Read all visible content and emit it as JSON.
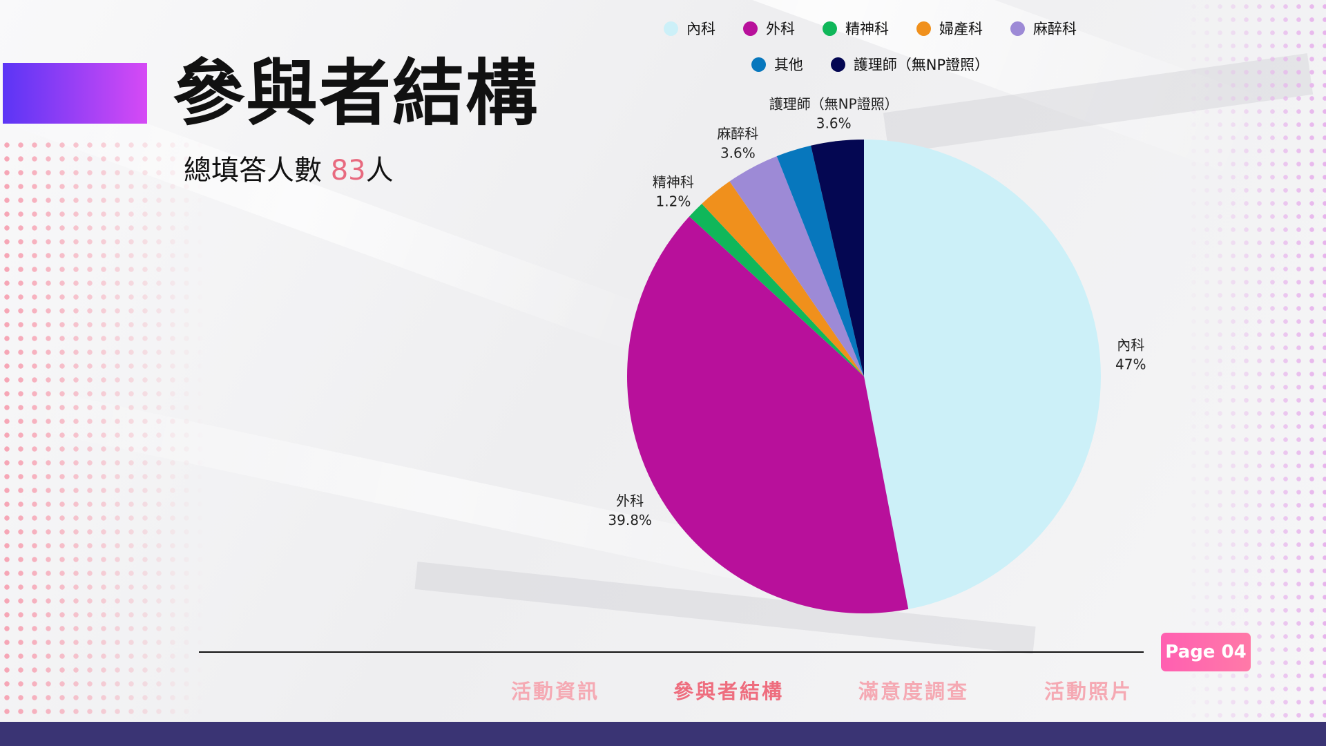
{
  "header": {
    "title": "參與者結構",
    "subtitle_prefix": "總填答人數 ",
    "subtitle_count": "83",
    "subtitle_suffix": "人"
  },
  "legend": {
    "row1": [
      "內科",
      "外科",
      "精神科",
      "婦產科",
      "麻醉科"
    ],
    "row2": [
      "其他",
      "護理師（無NP證照）"
    ]
  },
  "chart_data": {
    "type": "pie",
    "slices": [
      {
        "name": "內科",
        "value": 47,
        "label": "47%",
        "color": "#ccf0f8"
      },
      {
        "name": "外科",
        "value": 39.8,
        "label": "39.8%",
        "color": "#b8109b"
      },
      {
        "name": "精神科",
        "value": 1.2,
        "label": "1.2%",
        "color": "#10b75a"
      },
      {
        "name": "婦產科",
        "value": 2.4,
        "label": "",
        "color": "#f0901c"
      },
      {
        "name": "麻醉科",
        "value": 3.6,
        "label": "3.6%",
        "color": "#9d8ad6"
      },
      {
        "name": "其他",
        "value": 2.4,
        "label": "",
        "color": "#0777bd"
      },
      {
        "name": "護理師（無NP證照）",
        "value": 3.6,
        "label": "3.6%",
        "color": "#040752"
      }
    ],
    "start_angle_deg": 0,
    "direction": "clockwise"
  },
  "footer": {
    "page_label": "Page 04",
    "nav": [
      "活動資訊",
      "參與者結構",
      "滿意度調查",
      "活動照片"
    ],
    "active_nav_index": 1
  },
  "colors": {
    "accent_gradient_start": "#5b35f5",
    "accent_gradient_end": "#d64af5",
    "highlight": "#e86a7f",
    "nav_inactive": "#f5a9b3",
    "nav_active": "#ee6d7e",
    "bottom_bar": "#3a3474"
  }
}
